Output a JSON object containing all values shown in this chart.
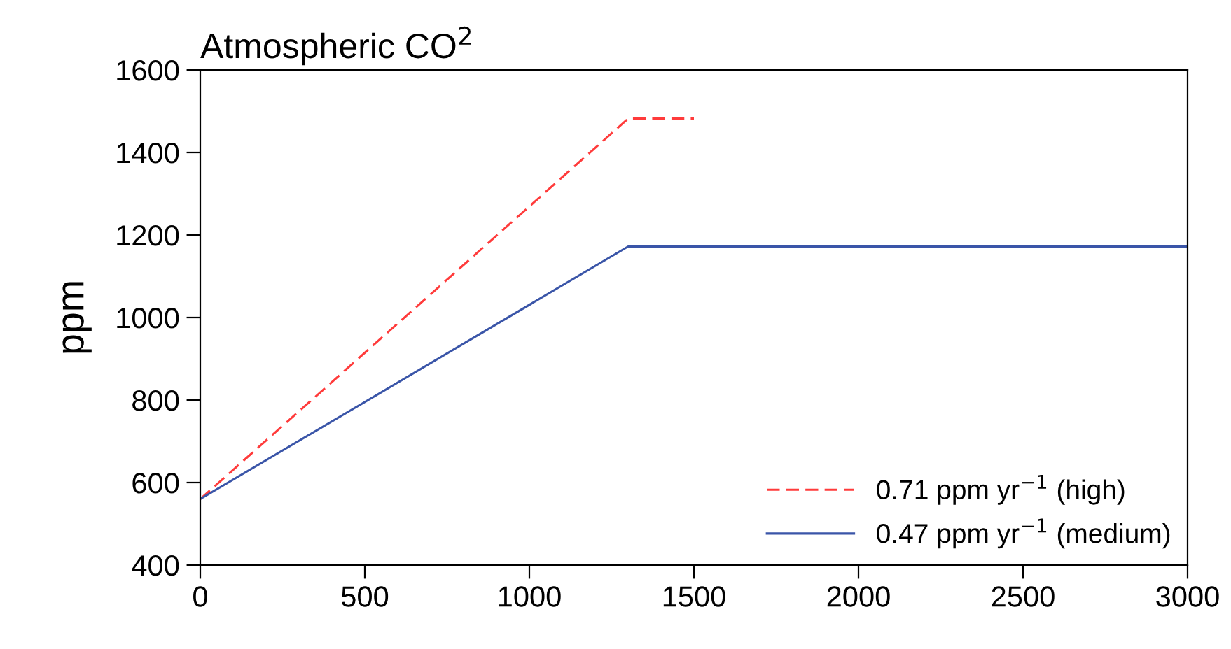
{
  "chart_data": {
    "type": "line",
    "title": "Atmospheric CO$^{2}$",
    "ylabel": "ppm",
    "xlim": [
      0,
      3000
    ],
    "xticks": [
      0,
      500,
      1000,
      1500,
      2000,
      2500,
      3000
    ],
    "ylim": [
      400,
      1600
    ],
    "yticks": [
      400,
      600,
      800,
      1000,
      1200,
      1400,
      1600
    ],
    "grid": false,
    "legend": "bottom right",
    "series": [
      {
        "name": "0.71 ppm yr$^{−1}$ (high)",
        "color": "#ff3b3b",
        "line_style": "dashed",
        "x": [
          0,
          1300,
          1500
        ],
        "values": [
          560,
          1482,
          1482
        ]
      },
      {
        "name": "0.47 ppm yr$^{−1}$ (medium)",
        "color": "#3a55a8",
        "line_style": "solid",
        "x": [
          0,
          1300,
          3000
        ],
        "values": [
          560,
          1172,
          1172
        ]
      }
    ]
  }
}
